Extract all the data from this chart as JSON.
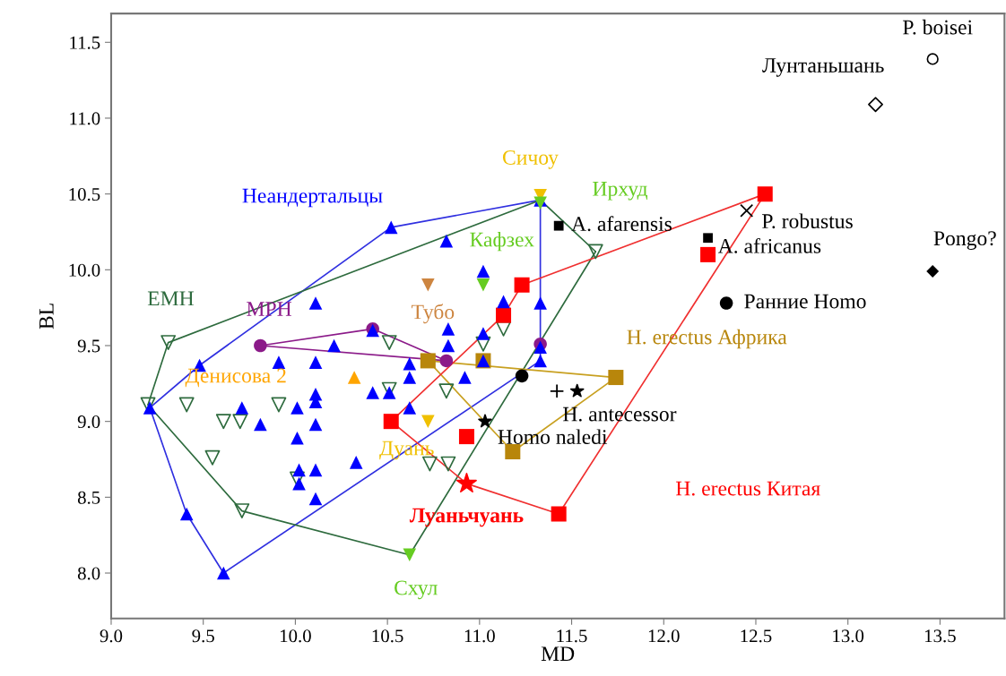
{
  "chart_data": {
    "type": "scatter",
    "xlabel": "MD",
    "ylabel": "BL",
    "xlim": [
      9.0,
      13.85
    ],
    "ylim": [
      7.7,
      11.69
    ],
    "xticks": [
      {
        "value": 9.0,
        "label": "9.0"
      },
      9.5,
      {
        "value": 10.0,
        "label": "10.0"
      },
      10.5,
      {
        "value": 11.0,
        "label": "11.0"
      },
      11.5,
      {
        "value": 12.0,
        "label": "12.0"
      },
      12.5,
      {
        "value": 13.0,
        "label": "13.0"
      },
      13.5
    ],
    "yticks": [
      {
        "value": 8.0,
        "label": "8.0"
      },
      8.5,
      {
        "value": 9.0,
        "label": "9.0"
      },
      9.5,
      {
        "value": 10.0,
        "label": "10.0"
      },
      10.5,
      {
        "value": 11.0,
        "label": "11.0"
      },
      11.5
    ],
    "grid": false,
    "legend": false,
    "series": [
      {
        "type": "line",
        "color": "#3030e0",
        "marker": "none",
        "x": [
          9.21,
          9.48,
          10.52,
          11.33,
          11.33
        ],
        "values": [
          9.09,
          9.37,
          10.28,
          10.46,
          9.4
        ]
      },
      {
        "type": "line",
        "color": "#3030e0",
        "marker": "none",
        "x": [
          9.21,
          9.41,
          9.61,
          11.33
        ],
        "values": [
          9.09,
          8.39,
          8.0,
          9.4
        ]
      },
      {
        "type": "line",
        "color": "#2e6b3e",
        "marker": "none",
        "x": [
          9.2,
          9.31,
          11.33,
          11.63
        ],
        "values": [
          9.11,
          9.52,
          10.46,
          10.12
        ]
      },
      {
        "type": "line",
        "color": "#2e6b3e",
        "marker": "none",
        "x": [
          9.2,
          9.71,
          10.62,
          11.63
        ],
        "values": [
          9.11,
          8.41,
          8.12,
          10.12
        ]
      },
      {
        "type": "line",
        "color": "#8b1a89",
        "marker": "none",
        "x": [
          9.81,
          10.42,
          10.82
        ],
        "values": [
          9.5,
          9.61,
          9.4
        ]
      },
      {
        "type": "line",
        "color": "#8b1a89",
        "marker": "none",
        "x": [
          9.81,
          10.82
        ],
        "values": [
          9.5,
          9.4
        ]
      },
      {
        "type": "line",
        "color": "#c8a020",
        "marker": "none",
        "x": [
          10.72,
          11.74
        ],
        "values": [
          9.4,
          9.29
        ]
      },
      {
        "type": "line",
        "color": "#c8a020",
        "marker": "none",
        "x": [
          10.72,
          11.18,
          11.74
        ],
        "values": [
          9.4,
          8.8,
          9.29
        ]
      },
      {
        "type": "line",
        "color": "#f03030",
        "marker": "none",
        "x": [
          10.52,
          11.13,
          11.23,
          12.55
        ],
        "values": [
          9.0,
          9.7,
          9.9,
          10.5
        ]
      },
      {
        "type": "line",
        "color": "#f03030",
        "marker": "none",
        "x": [
          10.52,
          10.93,
          11.43,
          12.55
        ],
        "values": [
          9.0,
          8.59,
          8.39,
          10.5
        ]
      },
      {
        "name": "Неандертальцы",
        "color": "#0000ff",
        "marker": "triangle",
        "x": [
          11.33,
          9.21,
          9.41,
          9.48,
          9.61,
          9.71,
          9.81,
          9.91,
          10.01,
          10.01,
          10.02,
          10.02,
          10.11,
          10.11,
          10.11,
          10.11,
          10.11,
          10.11,
          10.11,
          10.21,
          10.33,
          10.42,
          10.42,
          10.51,
          10.52,
          10.62,
          10.62,
          10.62,
          10.82,
          10.83,
          10.83,
          10.92,
          11.02,
          11.02,
          11.02,
          11.13,
          11.33,
          11.33,
          11.33
        ],
        "values": [
          10.46,
          9.09,
          8.39,
          9.37,
          8.0,
          9.09,
          8.98,
          9.39,
          9.09,
          8.89,
          8.68,
          8.59,
          9.78,
          9.39,
          9.18,
          9.13,
          8.98,
          8.68,
          8.49,
          9.5,
          8.73,
          9.19,
          9.6,
          9.19,
          10.28,
          9.38,
          9.29,
          9.09,
          10.19,
          9.61,
          9.5,
          9.29,
          9.99,
          9.58,
          9.4,
          9.79,
          9.78,
          9.49,
          9.4
        ]
      },
      {
        "name": "EMH",
        "color": "#2e6b3e",
        "marker": "triangle_down_open",
        "x": [
          9.31,
          9.2,
          9.41,
          9.91,
          9.61,
          9.7,
          9.55,
          9.71,
          10.01,
          10.51,
          10.51,
          10.82,
          10.73,
          10.83,
          11.02,
          11.13,
          11.63
        ],
        "values": [
          9.52,
          9.11,
          9.11,
          9.11,
          9.0,
          9.0,
          8.76,
          8.41,
          8.62,
          9.21,
          9.52,
          9.2,
          8.72,
          8.72,
          9.51,
          9.61,
          10.12
        ]
      },
      {
        "name": "MPH",
        "color": "#8b1a89",
        "marker": "circle",
        "x": [
          9.81,
          10.42,
          10.82,
          11.33
        ],
        "values": [
          9.5,
          9.61,
          9.4,
          9.51
        ]
      },
      {
        "name": "H. erectus Африка",
        "color": "#b8860b",
        "marker": "square",
        "x": [
          11.74,
          10.72,
          11.02,
          11.18
        ],
        "values": [
          9.29,
          9.4,
          9.4,
          8.8
        ]
      },
      {
        "name": "H. erectus Китая",
        "color": "#ff0000",
        "marker": "square",
        "x": [
          11.43,
          10.52,
          10.93,
          11.13,
          11.23,
          12.24,
          12.55
        ],
        "values": [
          8.39,
          9.0,
          8.9,
          9.7,
          9.9,
          10.1,
          10.5
        ]
      },
      {
        "name": "Луаньчуань",
        "color": "#ff0000",
        "marker": "star",
        "x": [
          10.93
        ],
        "values": [
          8.59
        ]
      },
      {
        "name": "Сичоу",
        "color": "#f0c000",
        "marker": "triangle_down",
        "x": [
          11.33
        ],
        "values": [
          10.49
        ]
      },
      {
        "name": "Ирхуд",
        "color": "#66cc22",
        "marker": "triangle_down",
        "x": [
          11.33
        ],
        "values": [
          10.44
        ]
      },
      {
        "name": "Кафзех",
        "color": "#66cc22",
        "marker": "triangle_down",
        "x": [
          11.02
        ],
        "values": [
          9.9
        ]
      },
      {
        "name": "Схул",
        "color": "#66cc22",
        "marker": "triangle_down",
        "x": [
          10.62
        ],
        "values": [
          8.12
        ]
      },
      {
        "name": "Тубо",
        "color": "#cd8540",
        "marker": "triangle_down",
        "x": [
          10.72
        ],
        "values": [
          9.9
        ]
      },
      {
        "name": "Денисова 2",
        "color": "#ffa500",
        "marker": "triangle",
        "x": [
          10.32
        ],
        "values": [
          9.29
        ]
      },
      {
        "name": "Дуань",
        "color": "#f0c000",
        "marker": "triangle_down",
        "x": [
          10.72
        ],
        "values": [
          9.0
        ]
      },
      {
        "color": "#000000",
        "marker": "circle",
        "x": [
          11.23
        ],
        "values": [
          9.3
        ]
      },
      {
        "name": "Homo naledi",
        "color": "#000000",
        "marker": "star",
        "x": [
          11.03
        ],
        "values": [
          9.0
        ]
      },
      {
        "color": "#000000",
        "marker": "plus",
        "x": [
          11.42
        ],
        "values": [
          9.2
        ]
      },
      {
        "name": "H. antecessor",
        "color": "#000000",
        "marker": "star",
        "x": [
          11.53
        ],
        "values": [
          9.2
        ]
      },
      {
        "name": "A. afarensis",
        "color": "#000000",
        "marker": "square",
        "x": [
          11.43
        ],
        "values": [
          10.29
        ]
      },
      {
        "name": "P. robustus",
        "color": "#000000",
        "marker": "cross",
        "x": [
          12.45
        ],
        "values": [
          10.39
        ]
      },
      {
        "name": "A. africanus",
        "color": "#000000",
        "marker": "square",
        "x": [
          12.24
        ],
        "values": [
          10.21
        ]
      },
      {
        "name": "Ранние Homo",
        "color": "#000000",
        "marker": "circle",
        "x": [
          12.34
        ],
        "values": [
          9.78
        ]
      },
      {
        "name": "Pongo?",
        "color": "#000000",
        "marker": "diamond",
        "x": [
          13.46
        ],
        "values": [
          9.99
        ]
      },
      {
        "name": "Лунтаньшань",
        "color": "#000000",
        "marker": "diamond_open",
        "x": [
          13.15
        ],
        "values": [
          11.09
        ]
      },
      {
        "name": "P. boisei",
        "color": "#000000",
        "marker": "circle_open",
        "x": [
          13.46
        ],
        "values": [
          11.39
        ]
      }
    ]
  }
}
